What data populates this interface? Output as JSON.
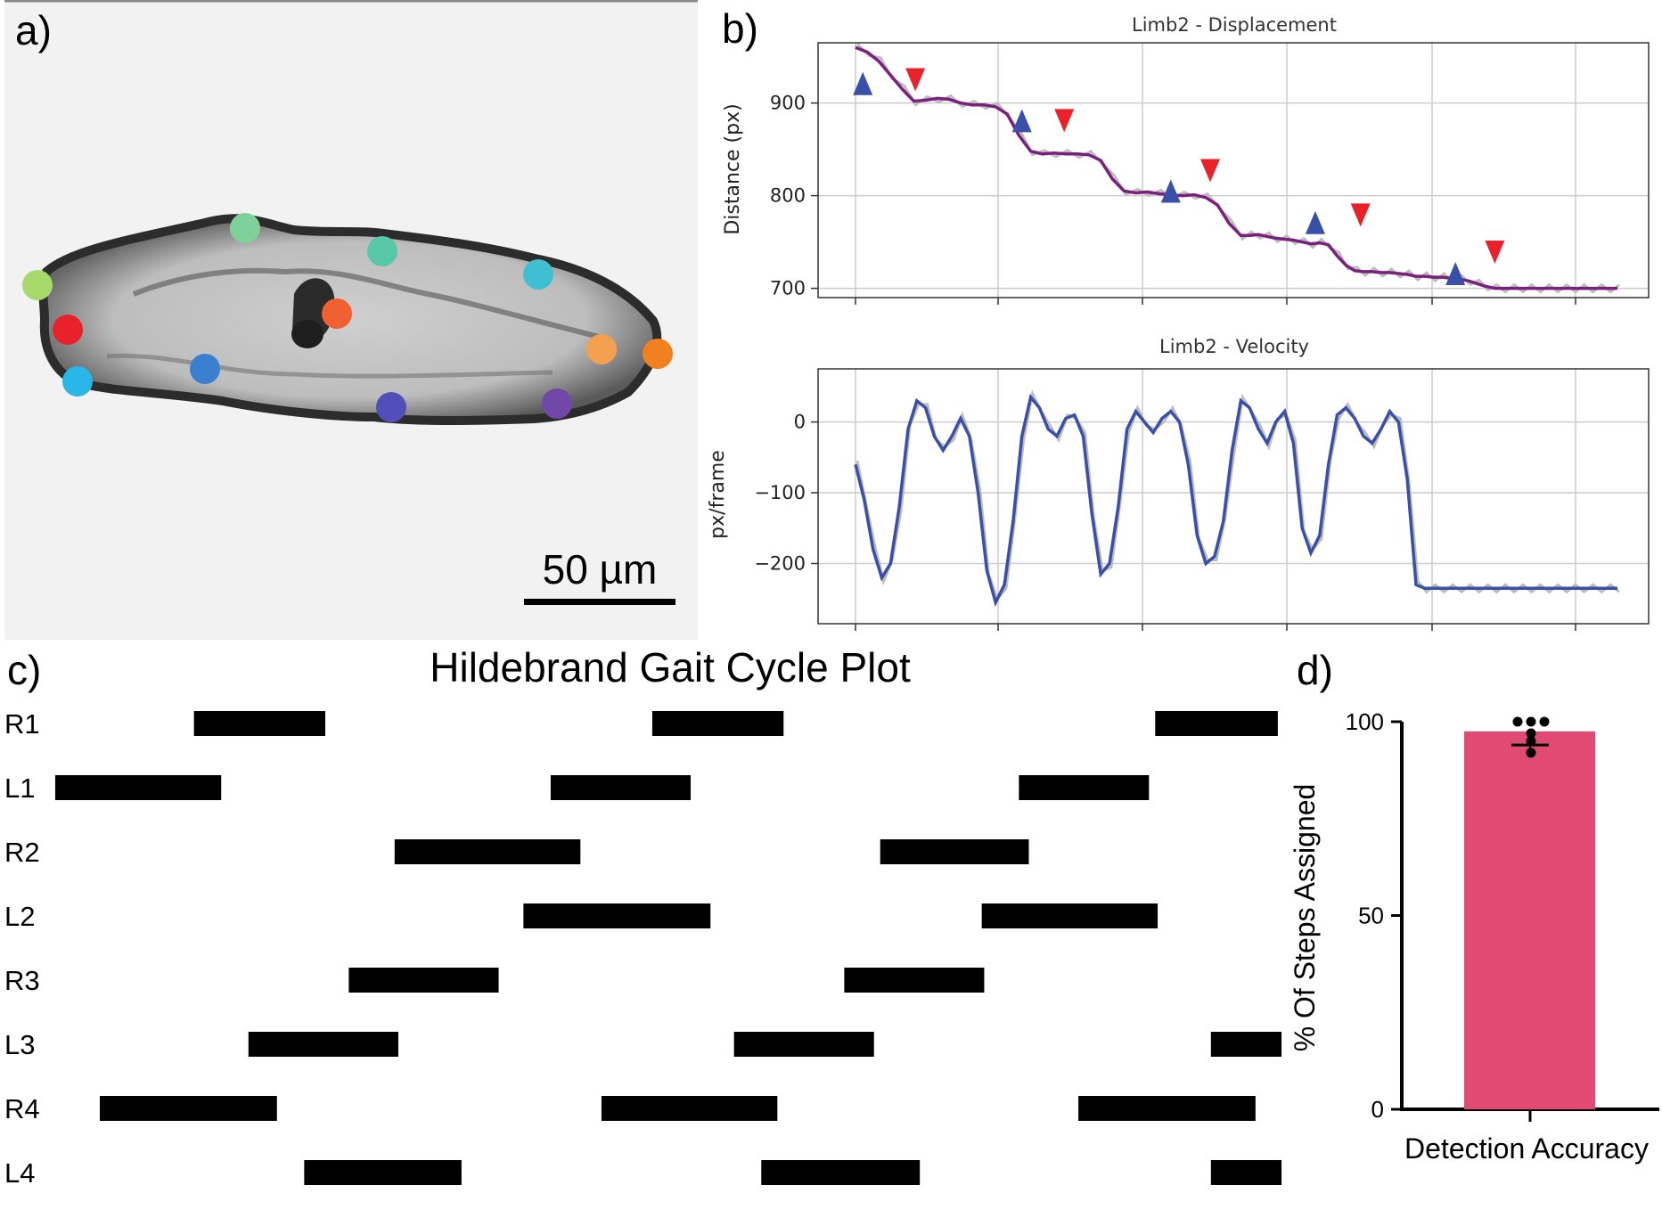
{
  "panels": {
    "a": "a)",
    "b": "b)",
    "c": "c)",
    "d": "d)"
  },
  "micrograph": {
    "scale_bar_label": "50 µm",
    "keypoint_colors": [
      "#a6d96a",
      "#7fd19a",
      "#58c7a8",
      "#40bfd0",
      "#e8212a",
      "#29b6e8",
      "#3a7fd0",
      "#f06030",
      "#f5a050",
      "#f08020",
      "#5050b8",
      "#7048a8"
    ]
  },
  "chart_data": [
    {
      "id": "displacement",
      "type": "line",
      "title": "Limb2 - Displacement",
      "ylabel": "Distance (px)",
      "xlabel": "",
      "ylim": [
        690,
        965
      ],
      "yticks": [
        700,
        800,
        900
      ],
      "grid": true,
      "series": [
        {
          "color": "#7b1f7f",
          "x": [
            0,
            8,
            16,
            24,
            32,
            40,
            48,
            56,
            64,
            72,
            80,
            88,
            96,
            104,
            112,
            120,
            128,
            136,
            144,
            152,
            160,
            168,
            176,
            184,
            192,
            200,
            208,
            216,
            224,
            232,
            240,
            248,
            256,
            264,
            270,
            276,
            282,
            288,
            294,
            300,
            306,
            312,
            318,
            324,
            330,
            336,
            342,
            348,
            354,
            360,
            366,
            372,
            378,
            384,
            390,
            396,
            402,
            408,
            414,
            420,
            426,
            432,
            438,
            444,
            450,
            456,
            462,
            468,
            474,
            480,
            486,
            492,
            498,
            504,
            510,
            516,
            522
          ],
          "values": [
            960,
            955,
            945,
            930,
            915,
            902,
            903,
            905,
            904,
            900,
            898,
            898,
            896,
            888,
            865,
            848,
            845,
            846,
            845,
            845,
            844,
            838,
            818,
            805,
            803,
            804,
            802,
            801,
            800,
            801,
            798,
            790,
            770,
            757,
            757,
            758,
            756,
            754,
            753,
            752,
            750,
            748,
            749,
            747,
            735,
            725,
            719,
            718,
            718,
            717,
            717,
            716,
            715,
            713,
            713,
            712,
            712,
            711,
            710,
            708,
            705,
            702,
            700,
            700,
            700,
            700,
            700,
            700,
            700,
            700,
            700,
            700,
            700,
            700,
            700,
            700,
            700
          ]
        }
      ],
      "markers_up": [
        [
          5,
          920
        ],
        [
          114,
          880
        ],
        [
          216,
          804
        ],
        [
          315,
          770
        ],
        [
          411,
          715
        ]
      ],
      "markers_down": [
        [
          41,
          926
        ],
        [
          143,
          882
        ],
        [
          243,
          828
        ],
        [
          346,
          780
        ],
        [
          438,
          740
        ]
      ]
    },
    {
      "id": "velocity",
      "type": "line",
      "title": "Limb2 - Velocity",
      "ylabel": "px/frame",
      "xlabel": "",
      "ylim": [
        -285,
        75
      ],
      "yticks": [
        -200,
        -100,
        0
      ],
      "grid": true,
      "series": [
        {
          "name": "",
          "color": "#3a4fa8",
          "x": [
            0,
            6,
            12,
            18,
            24,
            30,
            36,
            42,
            48,
            54,
            60,
            66,
            72,
            78,
            84,
            90,
            96,
            102,
            108,
            114,
            120,
            126,
            132,
            138,
            144,
            150,
            156,
            162,
            168,
            174,
            180,
            186,
            192,
            198,
            204,
            210,
            216,
            222,
            228,
            234,
            240,
            246,
            252,
            258,
            264,
            270,
            276,
            282,
            288,
            294,
            300,
            306,
            312,
            318,
            324,
            330,
            336,
            342,
            348,
            354,
            360,
            366,
            372,
            378,
            384,
            390,
            396,
            402,
            408,
            414,
            420,
            426,
            432,
            438,
            444,
            450,
            456,
            462,
            468,
            474,
            480,
            486,
            492,
            498,
            504,
            510,
            516,
            522
          ],
          "values": [
            -60,
            -110,
            -180,
            -220,
            -200,
            -120,
            -10,
            30,
            20,
            -20,
            -40,
            -20,
            5,
            -20,
            -100,
            -210,
            -255,
            -230,
            -140,
            -20,
            35,
            20,
            -10,
            -20,
            5,
            10,
            -20,
            -130,
            -215,
            -200,
            -120,
            -10,
            15,
            0,
            -15,
            5,
            15,
            0,
            -60,
            -160,
            -200,
            -190,
            -140,
            -40,
            30,
            20,
            -10,
            -30,
            0,
            15,
            -30,
            -150,
            -185,
            -160,
            -60,
            10,
            20,
            5,
            -20,
            -30,
            -10,
            15,
            0,
            -80,
            -230,
            -235,
            -235,
            -235,
            -235,
            -235,
            -235,
            -235,
            -235,
            -235,
            -235,
            -235,
            -235,
            -235,
            -235,
            -235,
            -235,
            -235,
            -235,
            -235,
            -235,
            -235,
            -235,
            -235
          ]
        }
      ]
    },
    {
      "id": "gait",
      "type": "bar",
      "title": "Hildebrand Gait Cycle Plot",
      "categories": [
        "R1",
        "L1",
        "R2",
        "L2",
        "R3",
        "L3",
        "R4",
        "L4"
      ],
      "xlim": [
        0,
        1000
      ],
      "stance_intervals": [
        [
          [
            117,
            223
          ],
          [
            487,
            593
          ],
          [
            893,
            992
          ]
        ],
        [
          [
            5,
            139
          ],
          [
            405,
            518
          ],
          [
            783,
            888
          ]
        ],
        [
          [
            279,
            429
          ],
          [
            671,
            791
          ]
        ],
        [
          [
            383,
            534
          ],
          [
            753,
            895
          ]
        ],
        [
          [
            242,
            363
          ],
          [
            642,
            755
          ]
        ],
        [
          [
            161,
            282
          ],
          [
            553,
            666
          ],
          [
            938,
            995
          ]
        ],
        [
          [
            41,
            184
          ],
          [
            446,
            588
          ],
          [
            831,
            974
          ]
        ],
        [
          [
            206,
            333
          ],
          [
            575,
            703
          ],
          [
            938,
            995
          ]
        ]
      ]
    },
    {
      "id": "accuracy",
      "type": "bar",
      "categories": [
        "Detection Accuracy"
      ],
      "values": [
        97.5
      ],
      "ylabel": "% Of Steps Assigned",
      "ylim": [
        0,
        100
      ],
      "yticks": [
        0,
        50,
        100
      ],
      "color": "#e04a73",
      "error_mean": 94,
      "points": [
        100,
        100,
        100,
        97,
        95,
        92
      ]
    }
  ]
}
